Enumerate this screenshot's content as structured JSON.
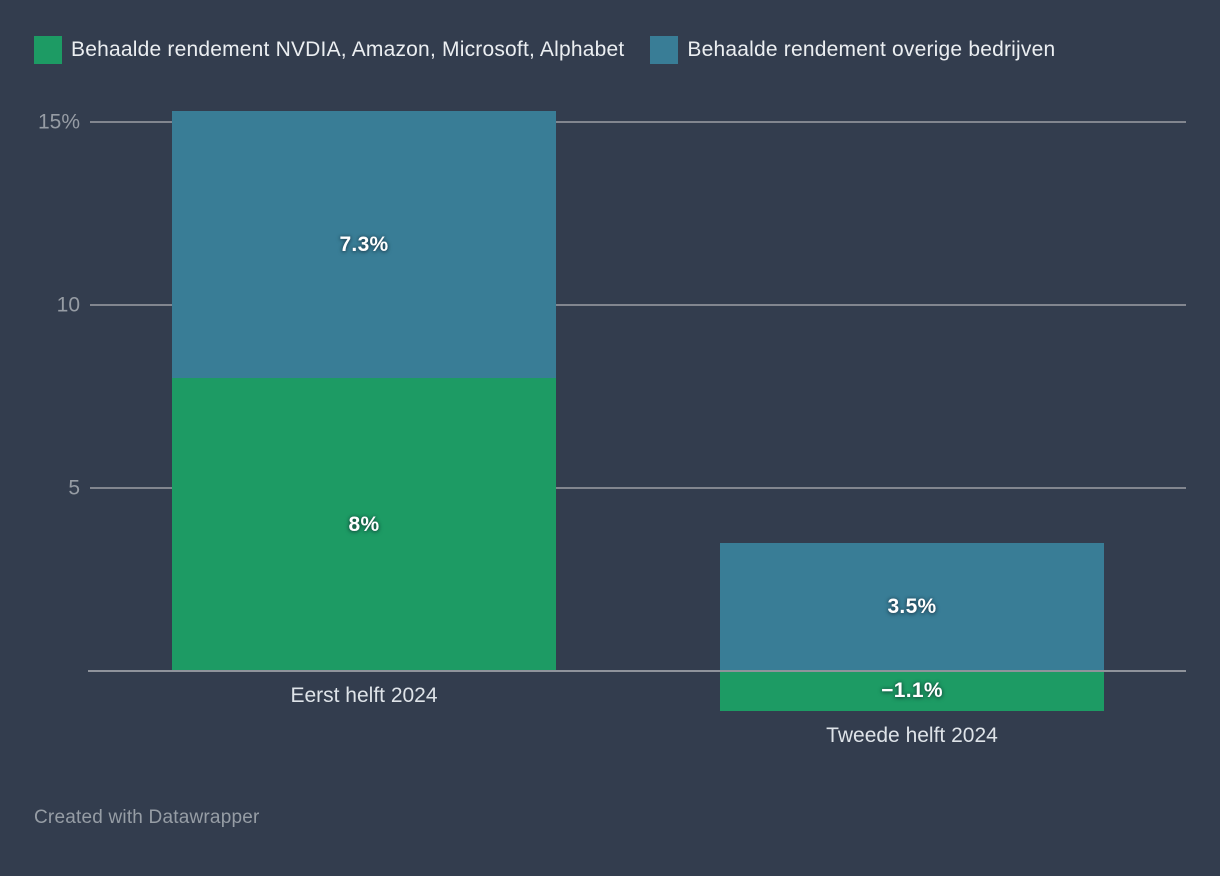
{
  "footer": {
    "credit": "Created with Datawrapper"
  },
  "colors": {
    "background": "#333d4e",
    "series_green": "#1d9b64",
    "series_blue": "#397d96",
    "gridline": "#82868f",
    "baseline": "#8f939b",
    "tick_label": "#969ca4",
    "category_label": "#dee3e8",
    "legend_text": "#ebeef1",
    "value_label": "#ffffff",
    "footer_text": "#969da5"
  },
  "chart_data": {
    "type": "bar",
    "stacked": true,
    "orientation": "vertical",
    "title": "",
    "xlabel": "",
    "ylabel": "",
    "grid": true,
    "legend_position": "top",
    "categories": [
      "Eerst helft 2024",
      "Tweede helft 2024"
    ],
    "series": [
      {
        "name": "Behaalde rendement NVDIA, Amazon, Microsoft, Alphabet",
        "color": "#1d9b64",
        "values": [
          8,
          -1.1
        ],
        "value_labels": [
          "8%",
          "−1.1%"
        ]
      },
      {
        "name": "Behaalde rendement overige bedrijven",
        "color": "#397d96",
        "values": [
          7.3,
          3.5
        ],
        "value_labels": [
          "7.3%",
          "3.5%"
        ]
      }
    ],
    "y_ticks": [
      {
        "value": 15,
        "label": "15%"
      },
      {
        "value": 10,
        "label": "10"
      },
      {
        "value": 5,
        "label": "5"
      }
    ],
    "ylim": [
      -1.5,
      15.5
    ]
  }
}
